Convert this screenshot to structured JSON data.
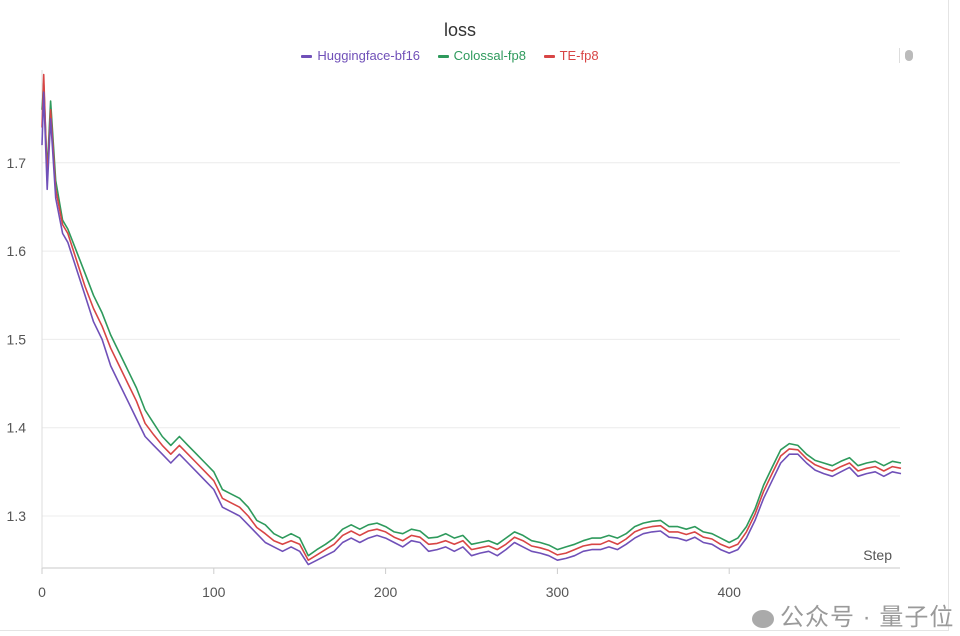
{
  "chart_data": {
    "type": "line",
    "title": "loss",
    "xlabel": "Step",
    "ylabel": "",
    "xlim": [
      0,
      500
    ],
    "ylim": [
      1.24,
      1.8
    ],
    "x_ticks": [
      0,
      100,
      200,
      300,
      400
    ],
    "y_ticks": [
      1.3,
      1.4,
      1.5,
      1.6,
      1.7
    ],
    "grid": true,
    "legend_position": "top-center",
    "x": [
      0,
      1,
      3,
      5,
      8,
      12,
      15,
      20,
      25,
      30,
      35,
      40,
      45,
      50,
      55,
      60,
      65,
      70,
      75,
      80,
      85,
      90,
      95,
      100,
      105,
      110,
      115,
      120,
      125,
      130,
      135,
      140,
      145,
      150,
      155,
      160,
      165,
      170,
      175,
      180,
      185,
      190,
      195,
      200,
      205,
      210,
      215,
      220,
      225,
      230,
      235,
      240,
      245,
      250,
      255,
      260,
      265,
      270,
      275,
      280,
      285,
      290,
      295,
      300,
      305,
      310,
      315,
      320,
      325,
      330,
      335,
      340,
      345,
      350,
      355,
      360,
      365,
      370,
      375,
      380,
      385,
      390,
      395,
      400,
      405,
      410,
      415,
      420,
      425,
      430,
      435,
      440,
      445,
      450,
      455,
      460,
      465,
      470,
      475,
      480,
      485,
      490,
      495,
      500
    ],
    "series": [
      {
        "name": "Huggingface-bf16",
        "color": "#7050b8",
        "values": [
          1.72,
          1.78,
          1.67,
          1.75,
          1.66,
          1.62,
          1.61,
          1.58,
          1.55,
          1.52,
          1.5,
          1.47,
          1.45,
          1.43,
          1.41,
          1.39,
          1.38,
          1.37,
          1.36,
          1.37,
          1.36,
          1.35,
          1.34,
          1.33,
          1.31,
          1.305,
          1.3,
          1.29,
          1.28,
          1.27,
          1.265,
          1.26,
          1.265,
          1.26,
          1.245,
          1.25,
          1.255,
          1.26,
          1.27,
          1.275,
          1.27,
          1.275,
          1.278,
          1.275,
          1.27,
          1.265,
          1.272,
          1.27,
          1.26,
          1.262,
          1.265,
          1.26,
          1.265,
          1.255,
          1.258,
          1.26,
          1.255,
          1.262,
          1.27,
          1.265,
          1.26,
          1.258,
          1.255,
          1.25,
          1.252,
          1.255,
          1.26,
          1.262,
          1.262,
          1.265,
          1.262,
          1.268,
          1.275,
          1.28,
          1.282,
          1.283,
          1.276,
          1.275,
          1.272,
          1.276,
          1.27,
          1.268,
          1.262,
          1.258,
          1.262,
          1.275,
          1.295,
          1.32,
          1.34,
          1.36,
          1.37,
          1.37,
          1.36,
          1.352,
          1.348,
          1.345,
          1.35,
          1.355,
          1.345,
          1.348,
          1.35,
          1.345,
          1.35,
          1.348
        ]
      },
      {
        "name": "Colossal-fp8",
        "color": "#2e9a5c",
        "values": [
          1.76,
          1.79,
          1.69,
          1.77,
          1.68,
          1.635,
          1.625,
          1.6,
          1.575,
          1.55,
          1.53,
          1.505,
          1.485,
          1.465,
          1.445,
          1.42,
          1.405,
          1.39,
          1.38,
          1.39,
          1.38,
          1.37,
          1.36,
          1.35,
          1.33,
          1.325,
          1.32,
          1.31,
          1.295,
          1.29,
          1.28,
          1.275,
          1.28,
          1.275,
          1.255,
          1.262,
          1.268,
          1.275,
          1.285,
          1.29,
          1.285,
          1.29,
          1.292,
          1.288,
          1.282,
          1.28,
          1.285,
          1.283,
          1.275,
          1.276,
          1.28,
          1.275,
          1.278,
          1.268,
          1.27,
          1.272,
          1.268,
          1.275,
          1.282,
          1.278,
          1.272,
          1.27,
          1.267,
          1.262,
          1.265,
          1.268,
          1.272,
          1.275,
          1.275,
          1.278,
          1.275,
          1.28,
          1.288,
          1.292,
          1.294,
          1.295,
          1.288,
          1.288,
          1.285,
          1.288,
          1.282,
          1.28,
          1.275,
          1.27,
          1.275,
          1.288,
          1.308,
          1.335,
          1.355,
          1.375,
          1.382,
          1.38,
          1.37,
          1.363,
          1.36,
          1.357,
          1.362,
          1.366,
          1.357,
          1.36,
          1.362,
          1.357,
          1.362,
          1.36
        ]
      },
      {
        "name": "TE-fp8",
        "color": "#d84545",
        "values": [
          1.74,
          1.8,
          1.68,
          1.76,
          1.67,
          1.63,
          1.62,
          1.59,
          1.56,
          1.535,
          1.515,
          1.49,
          1.47,
          1.45,
          1.43,
          1.405,
          1.392,
          1.38,
          1.37,
          1.38,
          1.37,
          1.36,
          1.35,
          1.34,
          1.32,
          1.315,
          1.31,
          1.3,
          1.287,
          1.28,
          1.272,
          1.268,
          1.272,
          1.268,
          1.25,
          1.256,
          1.262,
          1.268,
          1.278,
          1.283,
          1.278,
          1.283,
          1.285,
          1.282,
          1.276,
          1.272,
          1.278,
          1.276,
          1.268,
          1.269,
          1.272,
          1.268,
          1.272,
          1.262,
          1.264,
          1.266,
          1.262,
          1.268,
          1.276,
          1.272,
          1.266,
          1.264,
          1.261,
          1.256,
          1.258,
          1.262,
          1.266,
          1.268,
          1.268,
          1.272,
          1.268,
          1.274,
          1.282,
          1.286,
          1.288,
          1.289,
          1.282,
          1.282,
          1.279,
          1.282,
          1.276,
          1.274,
          1.268,
          1.264,
          1.268,
          1.282,
          1.302,
          1.328,
          1.348,
          1.368,
          1.376,
          1.375,
          1.365,
          1.358,
          1.354,
          1.351,
          1.356,
          1.36,
          1.351,
          1.354,
          1.356,
          1.351,
          1.356,
          1.354
        ]
      }
    ]
  },
  "watermark": "公众号 · 量子位"
}
